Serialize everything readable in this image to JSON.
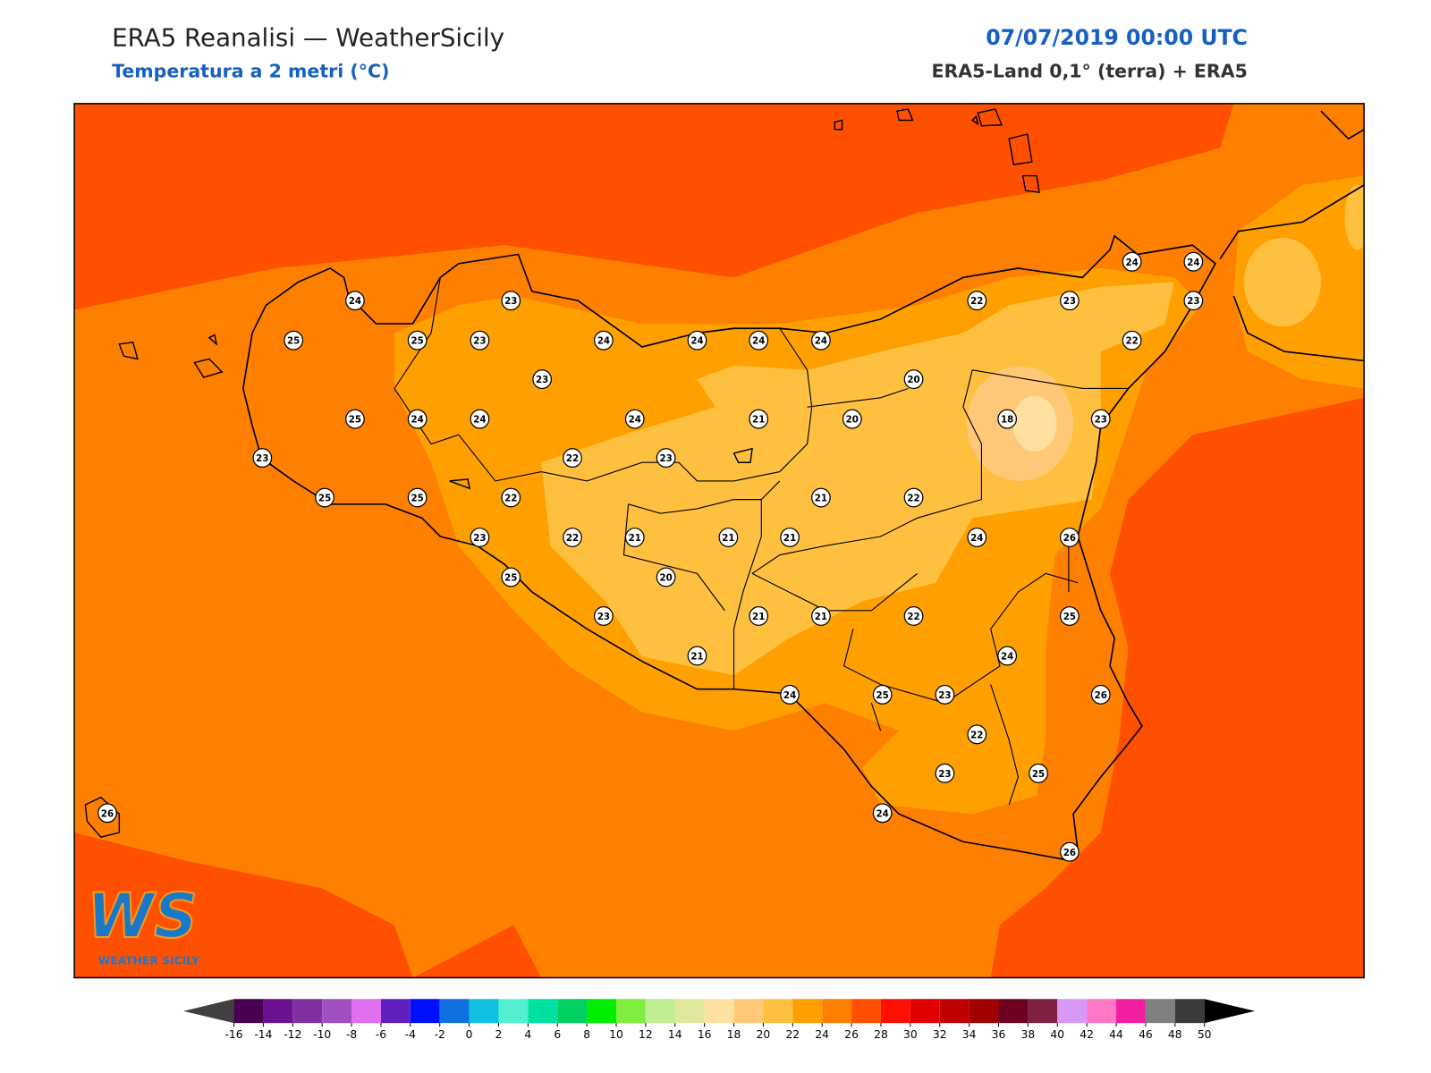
{
  "header": {
    "title": "ERA5 Reanalisi — WeatherSicily",
    "subtitle": "Temperatura a 2 metri (°C)",
    "date": "07/07/2019 00:00 UTC",
    "source": "ERA5-Land 0,1° (terra) + ERA5"
  },
  "stations": [
    24,
    23,
    25,
    25,
    23,
    24,
    24,
    24,
    24,
    22,
    23,
    24,
    24,
    23,
    22,
    23,
    20,
    25,
    24,
    24,
    24,
    21,
    20,
    18,
    23,
    23,
    22,
    23,
    25,
    25,
    22,
    21,
    22,
    23,
    22,
    21,
    21,
    21,
    24,
    26,
    25,
    20,
    23,
    21,
    21,
    22,
    25,
    21,
    24,
    24,
    25,
    23,
    26,
    22,
    23,
    25,
    26,
    24,
    26
  ],
  "colorbar": {
    "ticks": [
      -16,
      -14,
      -12,
      -10,
      -8,
      -6,
      -4,
      -2,
      0,
      2,
      4,
      6,
      8,
      10,
      12,
      14,
      16,
      18,
      20,
      22,
      24,
      26,
      28,
      30,
      32,
      34,
      36,
      38,
      40,
      42,
      44,
      46,
      48,
      50
    ],
    "colors": [
      "#4a0050",
      "#6a1090",
      "#8030a0",
      "#a050c0",
      "#e070f0",
      "#6020c0",
      "#0010ff",
      "#1070e0",
      "#10c0e0",
      "#50f0d0",
      "#00e0a0",
      "#00d060",
      "#00ee00",
      "#80ee40",
      "#c0ee90",
      "#e0e8a0",
      "#ffe0a0",
      "#ffc878",
      "#ffc040",
      "#ffa000",
      "#ff8000",
      "#ff5000",
      "#ff1000",
      "#e00000",
      "#c00000",
      "#a00000",
      "#700020",
      "#802040",
      "#d898f8",
      "#ff78c8",
      "#f020a0",
      "#808080",
      "#3a3a3a"
    ],
    "under": "#404040",
    "over": "#000000"
  },
  "logo": {
    "mark": "WS",
    "name": "WEATHER SICILY"
  }
}
